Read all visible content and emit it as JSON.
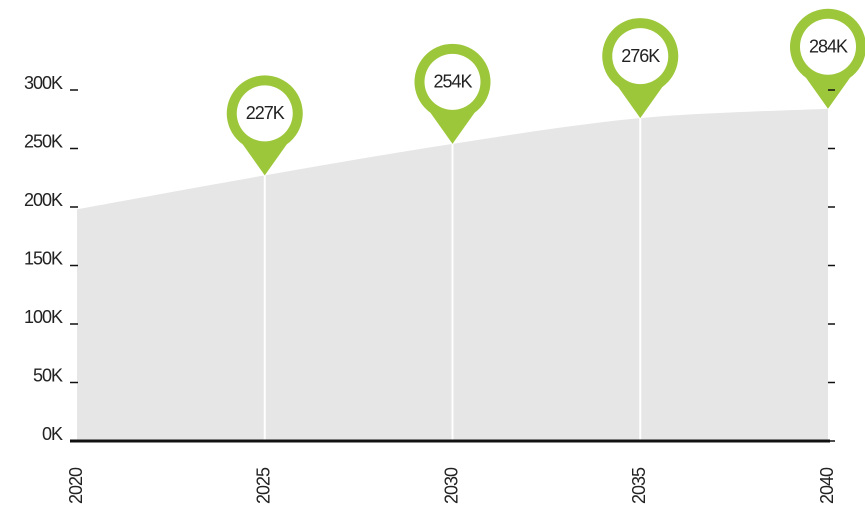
{
  "chart_data": {
    "type": "area",
    "x": [
      2020,
      2025,
      2030,
      2035,
      2040
    ],
    "values": [
      198000,
      227000,
      254000,
      276000,
      284000
    ],
    "value_labels": [
      null,
      "227K",
      "254K",
      "276K",
      "284K"
    ],
    "color": "#e6e6e6",
    "marker_color": "#9dc73a",
    "xlim": [
      2020,
      2040
    ],
    "xticks": [
      2020,
      2025,
      2030,
      2035,
      2040
    ],
    "ylim": [
      0,
      300000
    ],
    "yticks": [
      {
        "value": 0,
        "label": "0K"
      },
      {
        "value": 50000,
        "label": "50K"
      },
      {
        "value": 100000,
        "label": "100K"
      },
      {
        "value": 150000,
        "label": "150K"
      },
      {
        "value": 200000,
        "label": "200K"
      },
      {
        "value": 250000,
        "label": "250K"
      },
      {
        "value": 300000,
        "label": "300K"
      }
    ]
  }
}
